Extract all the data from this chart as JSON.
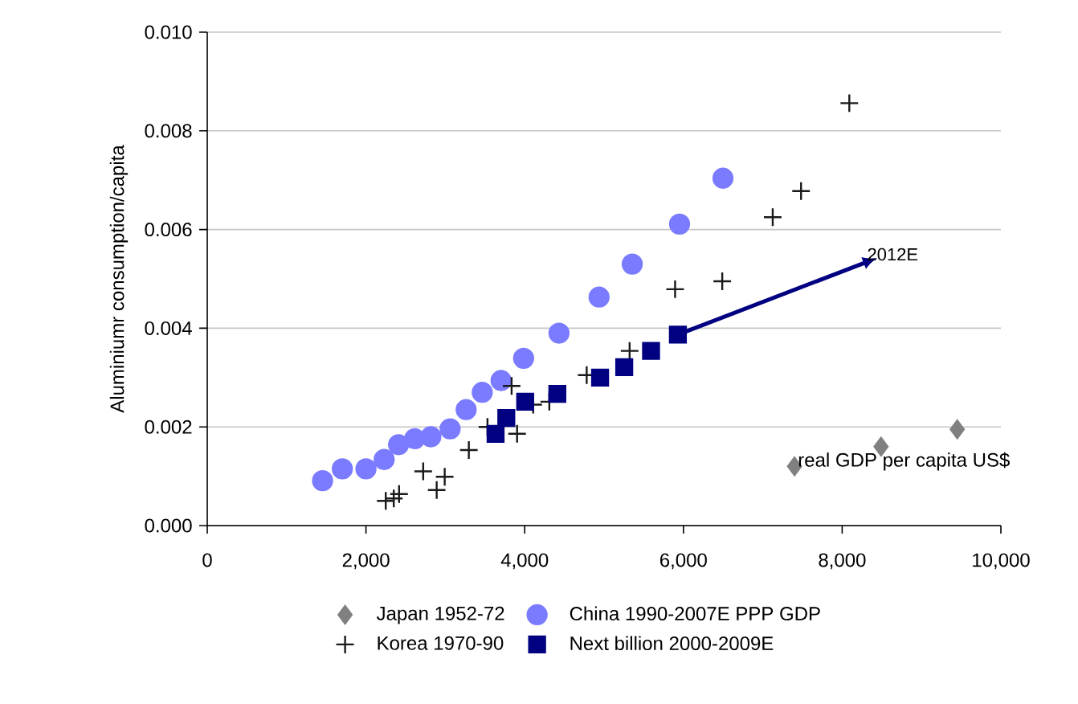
{
  "chart_data": {
    "type": "scatter",
    "ylabel": "Aluminiumr consumption/capita",
    "xlabel": "real GDP per capita US$",
    "xlim": [
      0,
      10000
    ],
    "ylim": [
      0,
      0.01
    ],
    "xticks": [
      0,
      {
        "value": 2000,
        "label": "2,000"
      },
      {
        "value": 4000,
        "label": "4,000"
      },
      {
        "value": 6000,
        "label": "6,000"
      },
      {
        "value": 8000,
        "label": "8,000"
      },
      {
        "value": 10000,
        "label": "10,000"
      }
    ],
    "yticks": [
      {
        "value": 0,
        "label": "0.000"
      },
      {
        "value": 0.002,
        "label": "0.002"
      },
      {
        "value": 0.004,
        "label": "0.004"
      },
      {
        "value": 0.006,
        "label": "0.006"
      },
      {
        "value": 0.008,
        "label": "0.008"
      },
      {
        "value": 0.01,
        "label": "0.010"
      }
    ],
    "grid": "y",
    "legend": "bottom",
    "annotations": [
      "2012E"
    ],
    "series": [
      {
        "name": "Japan 1952-72",
        "color": "#808080",
        "marker": "diamond",
        "x": [
          7400,
          8490,
          9450
        ],
        "values": [
          0.0012,
          0.0016,
          0.00195
        ]
      },
      {
        "name": "China 1990-2007E PPP GDP",
        "color": "#7b7bff",
        "marker": "circle",
        "x": [
          1453,
          1702,
          2000,
          2229,
          2411,
          2614,
          2817,
          3060,
          3262,
          3465,
          3702,
          3986,
          4432,
          4937,
          5355,
          5951,
          6498
        ],
        "values": [
          0.00091,
          0.00115,
          0.00115,
          0.00134,
          0.00164,
          0.00176,
          0.0018,
          0.00196,
          0.00235,
          0.0027,
          0.00294,
          0.00339,
          0.0039,
          0.00463,
          0.0053,
          0.00611,
          0.00704
        ]
      },
      {
        "name": "Korea 1970-90",
        "color": "#1a1a1a",
        "marker": "cross",
        "x": [
          2249,
          2350,
          2417,
          2721,
          2891,
          2992,
          3296,
          3531,
          3835,
          3904,
          4107,
          4310,
          4781,
          5322,
          5895,
          6489,
          7125,
          7482,
          8090
        ],
        "values": [
          0.0005,
          0.00055,
          0.00064,
          0.0011,
          0.00072,
          0.00099,
          0.00153,
          0.002,
          0.00283,
          0.00186,
          0.00245,
          0.00251,
          0.00305,
          0.00354,
          0.00479,
          0.00495,
          0.00625,
          0.00678,
          0.00856
        ]
      },
      {
        "name": "Next billion 2000-2009E",
        "color": "#000080",
        "marker": "square",
        "x": [
          3633,
          3768,
          4006,
          4411,
          4950,
          5254,
          5592,
          5930
        ],
        "values": [
          0.00186,
          0.00218,
          0.00251,
          0.00267,
          0.003,
          0.00321,
          0.00354,
          0.00387
        ]
      },
      {
        "type": "line",
        "color": "#000080",
        "marker": "none",
        "x": [
          5930,
          8290
        ],
        "values": [
          0.00387,
          0.00533
        ]
      }
    ]
  }
}
